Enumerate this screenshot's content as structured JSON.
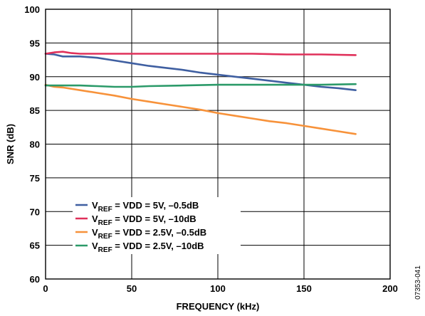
{
  "chart_data": {
    "type": "line",
    "title": "",
    "xlabel": "FREQUENCY (kHz)",
    "ylabel": "SNR (dB)",
    "xlim": [
      0,
      200
    ],
    "ylim": [
      60,
      100
    ],
    "xticks": [
      0,
      50,
      100,
      150,
      200
    ],
    "yticks": [
      60,
      65,
      70,
      75,
      80,
      85,
      90,
      95,
      100
    ],
    "grid": true,
    "legend_position": "bottom-left",
    "series": [
      {
        "name_main": "V",
        "name_sub": "REF",
        "name_rest": " = VDD = 5V, –0.5dB",
        "color": "#3f5fa1",
        "x": [
          0,
          5,
          10,
          20,
          30,
          40,
          50,
          60,
          70,
          80,
          90,
          100,
          110,
          120,
          130,
          140,
          150,
          160,
          170,
          180
        ],
        "y": [
          93.4,
          93.3,
          93.0,
          93.0,
          92.8,
          92.4,
          92.0,
          91.6,
          91.3,
          91.0,
          90.6,
          90.3,
          90.0,
          89.7,
          89.4,
          89.1,
          88.8,
          88.5,
          88.3,
          88.0
        ]
      },
      {
        "name_main": "V",
        "name_sub": "REF",
        "name_rest": " = VDD = 5V, –10dB",
        "color": "#e0305a",
        "x": [
          0,
          5,
          10,
          15,
          20,
          40,
          60,
          80,
          100,
          120,
          140,
          160,
          180
        ],
        "y": [
          93.4,
          93.6,
          93.7,
          93.5,
          93.4,
          93.4,
          93.4,
          93.4,
          93.4,
          93.4,
          93.3,
          93.3,
          93.2
        ]
      },
      {
        "name_main": "V",
        "name_sub": "REF",
        "name_rest": " = VDD = 2.5V, –0.5dB",
        "color": "#f7923a",
        "x": [
          0,
          5,
          10,
          20,
          30,
          40,
          50,
          60,
          70,
          80,
          90,
          100,
          110,
          120,
          130,
          140,
          150,
          160,
          170,
          180
        ],
        "y": [
          88.8,
          88.5,
          88.4,
          88.0,
          87.6,
          87.2,
          86.7,
          86.3,
          85.9,
          85.5,
          85.1,
          84.6,
          84.2,
          83.8,
          83.4,
          83.1,
          82.7,
          82.3,
          81.9,
          81.5
        ]
      },
      {
        "name_main": "V",
        "name_sub": "REF",
        "name_rest": " = VDD = 2.5V, –10dB",
        "color": "#2b9a69",
        "x": [
          0,
          10,
          20,
          30,
          40,
          50,
          60,
          80,
          100,
          120,
          140,
          160,
          180
        ],
        "y": [
          88.7,
          88.7,
          88.7,
          88.6,
          88.5,
          88.5,
          88.6,
          88.7,
          88.8,
          88.8,
          88.8,
          88.8,
          88.9
        ]
      }
    ]
  },
  "figure_code": "07353-041"
}
